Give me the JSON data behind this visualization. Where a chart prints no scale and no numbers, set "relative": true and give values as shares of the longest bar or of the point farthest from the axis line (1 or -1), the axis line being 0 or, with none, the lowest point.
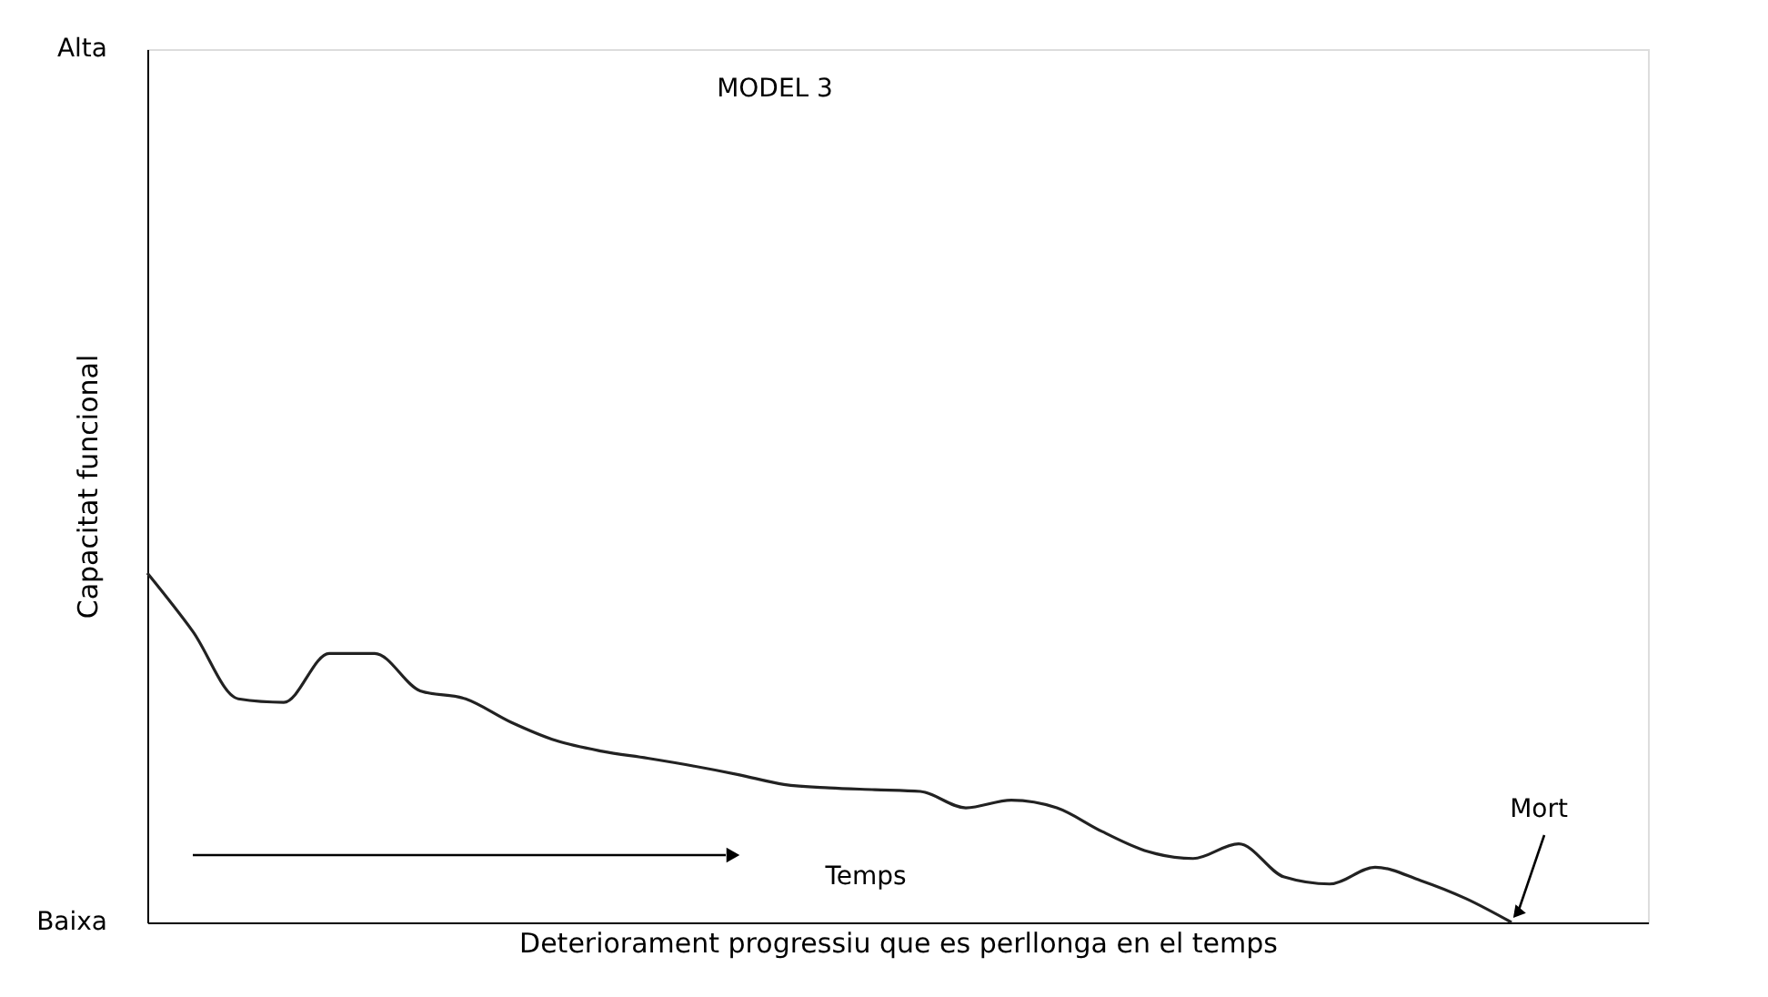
{
  "chart_data": {
    "type": "line",
    "title": "MODEL 3",
    "xlabel": "Deteriorament progressiu que es perllonga en el temps",
    "ylabel": "Capacitat funcional",
    "categories": [
      null,
      null,
      null,
      null,
      null,
      null,
      null,
      null,
      null,
      null,
      null,
      null,
      null,
      null,
      null,
      null,
      null,
      null,
      null,
      null,
      null,
      null,
      null,
      null,
      null,
      null,
      null,
      null,
      null,
      null,
      null,
      null,
      null,
      null
    ],
    "series": [
      {
        "color": "#222222",
        "values": [
          1,
          0.833,
          0.64,
          0.63,
          0.77,
          0.77,
          0.663,
          0.64,
          0.573,
          0.52,
          0.49,
          0.47,
          0.448,
          0.423,
          0.395,
          0.385,
          0.38,
          0.375,
          0.328,
          0.35,
          0.328,
          0.26,
          0.203,
          0.183,
          0.225,
          0.13,
          0.11,
          0.158,
          0.12,
          0.068,
          0,
          null,
          null,
          null
        ]
      }
    ],
    "relative": true,
    "grid": false,
    "marker": "none",
    "line_style": "solid",
    "annotations": [
      "Alta",
      "Baixa",
      "Temps",
      "Mort"
    ]
  }
}
